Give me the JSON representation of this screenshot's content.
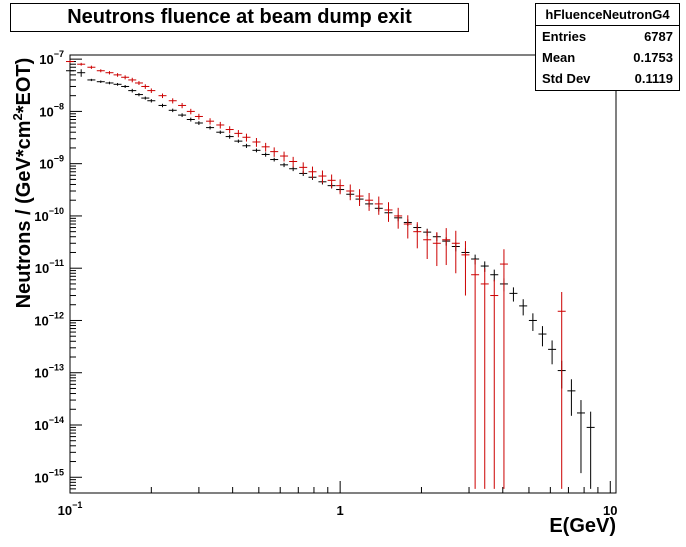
{
  "chart_data": {
    "type": "scatter",
    "title": "Neutrons fluence at beam dump exit",
    "xlabel": "E(GeV)",
    "ylabel_parts": [
      "Neutrons / (GeV*cm",
      "2",
      "*EOT)"
    ],
    "x_scale": "log",
    "y_scale": "log",
    "xlim": [
      0.1,
      10.5
    ],
    "ylim": [
      5e-16,
      1.2e-07
    ],
    "x_ticks": [
      {
        "value": 0.1,
        "label_base": "10",
        "label_exp": "−1"
      },
      {
        "value": 1,
        "label_base": "1",
        "label_exp": ""
      },
      {
        "value": 10,
        "label_base": "10",
        "label_exp": ""
      }
    ],
    "y_ticks": [
      {
        "value": 1e-15,
        "label_base": "10",
        "label_exp": "−15"
      },
      {
        "value": 1e-14,
        "label_base": "10",
        "label_exp": "−14"
      },
      {
        "value": 1e-13,
        "label_base": "10",
        "label_exp": "−13"
      },
      {
        "value": 1e-12,
        "label_base": "10",
        "label_exp": "−12"
      },
      {
        "value": 1e-11,
        "label_base": "10",
        "label_exp": "−11"
      },
      {
        "value": 1e-10,
        "label_base": "10",
        "label_exp": "−10"
      },
      {
        "value": 1e-09,
        "label_base": "10",
        "label_exp": "−9"
      },
      {
        "value": 1e-08,
        "label_base": "10",
        "label_exp": "−8"
      },
      {
        "value": 1e-07,
        "label_base": "10",
        "label_exp": "−7"
      }
    ],
    "grid": false,
    "stats": {
      "name": "hFluenceNeutronG4",
      "rows": [
        {
          "label": "Entries",
          "value": "6787"
        },
        {
          "label": "Mean",
          "value": "0.1753"
        },
        {
          "label": "Std Dev",
          "value": "0.1119"
        }
      ]
    },
    "series": [
      {
        "color": "#000000",
        "x": [
          0.1,
          0.11,
          0.12,
          0.13,
          0.14,
          0.15,
          0.16,
          0.17,
          0.18,
          0.19,
          0.2,
          0.22,
          0.24,
          0.26,
          0.28,
          0.3,
          0.33,
          0.36,
          0.39,
          0.42,
          0.45,
          0.49,
          0.53,
          0.57,
          0.62,
          0.67,
          0.73,
          0.79,
          0.86,
          0.93,
          1.0,
          1.09,
          1.18,
          1.28,
          1.39,
          1.51,
          1.64,
          1.78,
          1.93,
          2.1,
          2.28,
          2.47,
          2.68,
          2.91,
          3.16,
          3.43,
          3.72,
          4.04,
          4.38,
          4.76,
          5.17,
          5.61,
          6.09,
          6.61,
          7.18,
          7.79,
          8.46
        ],
        "y": [
          6e-08,
          5.5e-08,
          4e-08,
          3.7e-08,
          3.5e-08,
          3.3e-08,
          3e-08,
          2.5e-08,
          2.1e-08,
          1.8e-08,
          1.6e-08,
          1.3e-08,
          1.05e-08,
          8.5e-09,
          7e-09,
          6e-09,
          4.9e-09,
          4e-09,
          3.3e-09,
          2.7e-09,
          2.2e-09,
          1.8e-09,
          1.5e-09,
          1.2e-09,
          9.5e-10,
          8e-10,
          6.5e-10,
          5.5e-10,
          4.5e-10,
          3.8e-10,
          3.2e-10,
          2.6e-10,
          2.1e-10,
          1.7e-10,
          1.4e-10,
          1.15e-10,
          9.2e-11,
          7.5e-11,
          6e-11,
          4.9e-11,
          4e-11,
          3.3e-11,
          2.6e-11,
          2e-11,
          1.5e-11,
          1.1e-11,
          7.5e-12,
          5e-12,
          3.3e-12,
          1.9e-12,
          1e-12,
          5.5e-13,
          2.8e-13,
          1.1e-13,
          4.5e-14,
          1.7e-14,
          9e-15
        ],
        "err_low": [
          5e-08,
          4.6e-08,
          3.8e-08,
          3.5e-08,
          3.3e-08,
          3.1e-08,
          2.8e-08,
          2.3e-08,
          1.95e-08,
          1.68e-08,
          1.48e-08,
          1.2e-08,
          9.7e-09,
          7.8e-09,
          6.4e-09,
          5.5e-09,
          4.5e-09,
          3.7e-09,
          3e-09,
          2.5e-09,
          2e-09,
          1.65e-09,
          1.36e-09,
          1.1e-09,
          8.6e-10,
          7.2e-10,
          5.8e-10,
          4.9e-10,
          4e-10,
          3.35e-10,
          2.8e-10,
          2.3e-10,
          1.85e-10,
          1.48e-10,
          1.22e-10,
          1e-10,
          7.9e-11,
          6.4e-11,
          5.1e-11,
          4.1e-11,
          3.3e-11,
          2.7e-11,
          2.1e-11,
          1.6e-11,
          1.18e-11,
          8.5e-12,
          5.6e-12,
          3.6e-12,
          2.3e-12,
          1.25e-12,
          6.3e-13,
          3.2e-13,
          1.45e-13,
          5e-14,
          1.5e-14,
          1.2e-15,
          6e-16
        ],
        "err_high": [
          7e-08,
          6.4e-08,
          4.2e-08,
          3.9e-08,
          3.7e-08,
          3.5e-08,
          3.2e-08,
          2.7e-08,
          2.25e-08,
          1.92e-08,
          1.72e-08,
          1.4e-08,
          1.13e-08,
          9.2e-09,
          7.6e-09,
          6.5e-09,
          5.3e-09,
          4.3e-09,
          3.6e-09,
          2.9e-09,
          2.4e-09,
          1.95e-09,
          1.64e-09,
          1.3e-09,
          1.04e-09,
          8.8e-10,
          7.2e-10,
          6.1e-10,
          5e-10,
          4.25e-10,
          3.6e-10,
          2.9e-10,
          2.35e-10,
          1.92e-10,
          1.58e-10,
          1.3e-10,
          1.05e-10,
          8.6e-11,
          6.9e-11,
          5.7e-11,
          4.7e-11,
          3.9e-11,
          3.1e-11,
          2.4e-11,
          1.82e-11,
          1.35e-11,
          9.4e-12,
          6.4e-12,
          4.3e-12,
          2.55e-12,
          1.37e-12,
          7.8e-13,
          4.15e-13,
          1.7e-13,
          7.5e-14,
          3e-14,
          1.8e-14
        ]
      },
      {
        "color": "#cc0000",
        "x": [
          0.1,
          0.11,
          0.12,
          0.13,
          0.14,
          0.15,
          0.16,
          0.17,
          0.18,
          0.19,
          0.2,
          0.22,
          0.24,
          0.26,
          0.28,
          0.3,
          0.33,
          0.36,
          0.39,
          0.42,
          0.45,
          0.49,
          0.53,
          0.57,
          0.62,
          0.67,
          0.73,
          0.79,
          0.86,
          0.93,
          1.0,
          1.09,
          1.18,
          1.28,
          1.39,
          1.51,
          1.64,
          1.78,
          1.93,
          2.1,
          2.28,
          2.47,
          2.68,
          2.91,
          3.16,
          3.43,
          3.72,
          4.04,
          6.61
        ],
        "y": [
          9e-08,
          8e-08,
          7e-08,
          6e-08,
          5.5e-08,
          5e-08,
          4.5e-08,
          4e-08,
          3.5e-08,
          3e-08,
          2.5e-08,
          2e-08,
          1.6e-08,
          1.3e-08,
          1e-08,
          8e-09,
          6.5e-09,
          5.5e-09,
          4.5e-09,
          3.8e-09,
          3.2e-09,
          2.6e-09,
          2.1e-09,
          1.7e-09,
          1.4e-09,
          1.1e-09,
          8.5e-10,
          7e-10,
          5.8e-10,
          4.8e-10,
          3.8e-10,
          3e-10,
          2.4e-10,
          2e-10,
          1.7e-10,
          1.3e-10,
          1e-10,
          7e-11,
          5e-11,
          3.5e-11,
          3e-11,
          3.5e-11,
          3e-11,
          1.8e-11,
          7.5e-12,
          5e-12,
          3e-12,
          1.2e-11,
          1.5e-12
        ],
        "err_low": [
          8.5e-08,
          7.5e-08,
          6.5e-08,
          5.6e-08,
          5.1e-08,
          4.6e-08,
          4.1e-08,
          3.6e-08,
          3.2e-08,
          2.7e-08,
          2.25e-08,
          1.8e-08,
          1.42e-08,
          1.15e-08,
          8.8e-09,
          7e-09,
          5.6e-09,
          4.7e-09,
          3.8e-09,
          3.2e-09,
          2.65e-09,
          2.1e-09,
          1.7e-09,
          1.35e-09,
          1.1e-09,
          8.5e-10,
          6.4e-10,
          5.2e-10,
          4.2e-10,
          3.4e-10,
          2.6e-10,
          2e-10,
          1.55e-10,
          1.25e-10,
          1.05e-10,
          7.7e-11,
          5.7e-11,
          3.7e-11,
          2.4e-11,
          1.5e-11,
          1.1e-11,
          1.15e-11,
          8e-12,
          3e-12,
          6e-16,
          6e-16,
          6e-16,
          6e-16,
          6e-16
        ],
        "err_high": [
          9.5e-08,
          8.5e-08,
          7.5e-08,
          6.4e-08,
          5.9e-08,
          5.4e-08,
          4.9e-08,
          4.4e-08,
          3.8e-08,
          3.3e-08,
          2.75e-08,
          2.2e-08,
          1.78e-08,
          1.45e-08,
          1.12e-08,
          9e-09,
          7.4e-09,
          6.3e-09,
          5.2e-09,
          4.4e-09,
          3.75e-09,
          3.1e-09,
          2.5e-09,
          2.05e-09,
          1.7e-09,
          1.35e-09,
          1.06e-09,
          8.8e-10,
          7.4e-10,
          6.2e-10,
          5e-10,
          4e-10,
          3.25e-10,
          2.75e-10,
          2.35e-10,
          1.83e-10,
          1.43e-10,
          1.03e-10,
          7.6e-11,
          5.5e-11,
          4.9e-11,
          5.85e-11,
          5.2e-11,
          3.3e-11,
          1.5e-11,
          1e-11,
          6e-12,
          2.3e-11,
          3.5e-12
        ]
      }
    ]
  }
}
